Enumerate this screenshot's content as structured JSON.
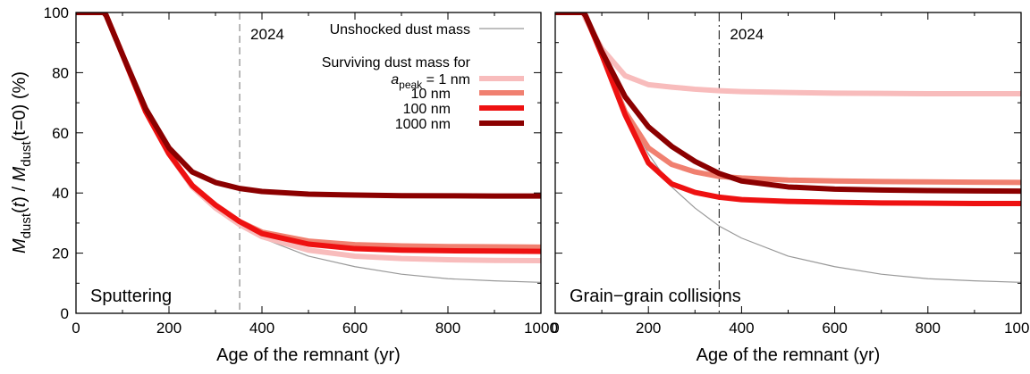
{
  "figure": {
    "ylabel_parts": [
      "M",
      "dust",
      "(",
      "t",
      ") / ",
      "M",
      "dust",
      "(t=0) (%)"
    ]
  },
  "chart_data": [
    {
      "type": "line",
      "panel_label": "Sputtering",
      "xlabel": "Age of the remnant (yr)",
      "xlim": [
        0,
        1000
      ],
      "ylim": [
        0,
        100
      ],
      "xticks": [
        0,
        200,
        400,
        600,
        800,
        1000
      ],
      "yticks": [
        0,
        20,
        40,
        60,
        80,
        100
      ],
      "grid": false,
      "vline": {
        "x": 352,
        "label": "2024"
      },
      "legend": {
        "placement": "top-right",
        "unshocked_label": "Unshocked dust mass",
        "surviving_header": "Surviving dust mass for",
        "apeak_symbol": "a",
        "apeak_subscript": "peak",
        "apeak_suffix": " = 1 nm"
      },
      "x": [
        0,
        60,
        65,
        100,
        150,
        200,
        250,
        300,
        352,
        400,
        500,
        600,
        700,
        800,
        900,
        1000
      ],
      "series": [
        {
          "name": "Unshocked dust mass",
          "color": "#999999",
          "values": [
            100,
            100,
            99,
            86,
            67,
            53,
            42,
            35,
            29,
            25,
            19,
            15.5,
            13,
            11.5,
            10.8,
            10.3
          ]
        },
        {
          "name": "1 nm",
          "color": "#f8bcbc",
          "values": [
            100,
            100,
            99,
            86,
            67,
            53,
            42,
            35,
            29.5,
            25.5,
            21,
            19,
            18.2,
            17.8,
            17.6,
            17.5
          ]
        },
        {
          "name": "10 nm",
          "color": "#f08070",
          "values": [
            100,
            100,
            99,
            86,
            67,
            53,
            42.5,
            36,
            30.5,
            27,
            24,
            22.8,
            22.4,
            22.2,
            22.1,
            22
          ]
        },
        {
          "name": "100 nm",
          "color": "#ee1111",
          "values": [
            100,
            100,
            99,
            86,
            67,
            53,
            42.5,
            36,
            30.5,
            26.5,
            23,
            21.5,
            21,
            20.8,
            20.7,
            20.6
          ]
        },
        {
          "name": "1000 nm",
          "color": "#8b0000",
          "values": [
            100,
            100,
            99,
            86,
            68,
            55,
            47,
            43.5,
            41.5,
            40.5,
            39.6,
            39.3,
            39.1,
            39.05,
            39,
            39
          ]
        }
      ]
    },
    {
      "type": "line",
      "panel_label": "Grain−grain collisions",
      "xlabel": "Age of the remnant (yr)",
      "xlim": [
        0,
        1000
      ],
      "ylim": [
        0,
        100
      ],
      "xticks": [
        0,
        200,
        400,
        600,
        800,
        1000
      ],
      "yticks": [
        0,
        20,
        40,
        60,
        80,
        100
      ],
      "grid": false,
      "vline": {
        "x": 352,
        "label": "2024"
      },
      "x": [
        0,
        60,
        65,
        100,
        150,
        200,
        250,
        300,
        352,
        400,
        500,
        600,
        700,
        800,
        900,
        1000
      ],
      "series": [
        {
          "name": "Unshocked dust mass",
          "color": "#999999",
          "values": [
            100,
            100,
            99,
            86,
            67,
            53,
            42,
            35,
            29,
            25,
            19,
            15.5,
            13,
            11.5,
            10.8,
            10.3
          ]
        },
        {
          "name": "1 nm",
          "color": "#f8bcbc",
          "values": [
            100,
            100,
            98,
            88,
            79,
            76,
            75.2,
            74.5,
            74,
            73.7,
            73.4,
            73.2,
            73.1,
            73,
            73,
            73
          ]
        },
        {
          "name": "10 nm",
          "color": "#f08070",
          "values": [
            100,
            100,
            99,
            86,
            67,
            55,
            49.5,
            47,
            45.5,
            45,
            44.3,
            44,
            43.8,
            43.7,
            43.6,
            43.5
          ]
        },
        {
          "name": "100 nm",
          "color": "#ee1111",
          "values": [
            100,
            100,
            99,
            86,
            66,
            50,
            43,
            40.2,
            38.6,
            37.8,
            37.2,
            36.9,
            36.7,
            36.6,
            36.5,
            36.5
          ]
        },
        {
          "name": "1000 nm",
          "color": "#8b0000",
          "values": [
            100,
            100,
            99,
            87,
            72,
            62,
            55.5,
            50.5,
            46.5,
            44,
            42,
            41.3,
            41,
            40.8,
            40.7,
            40.6
          ]
        }
      ]
    }
  ]
}
